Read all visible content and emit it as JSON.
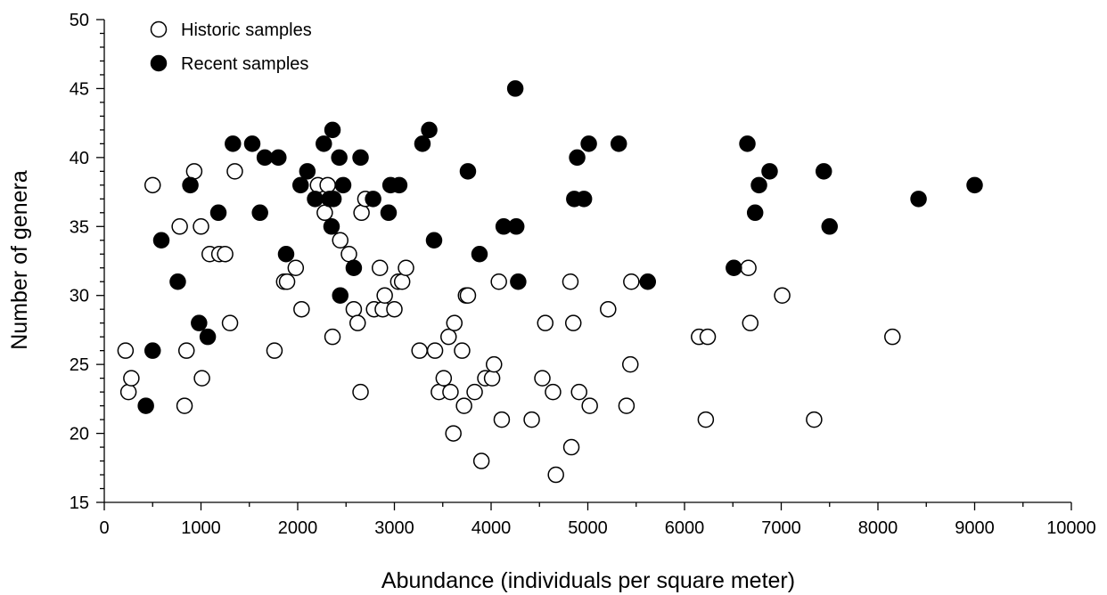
{
  "chart_data": {
    "type": "scatter",
    "xlabel": "Abundance (individuals per square meter)",
    "ylabel": "Number of genera",
    "xlim": [
      0,
      10000
    ],
    "ylim": [
      15,
      50
    ],
    "x_ticks": [
      0,
      1000,
      2000,
      3000,
      4000,
      5000,
      6000,
      7000,
      8000,
      9000,
      10000
    ],
    "y_ticks": [
      15,
      20,
      25,
      30,
      35,
      40,
      45,
      50
    ],
    "x_tick_labels": [
      "0",
      "1000",
      "2000",
      "3000",
      "4000",
      "5000",
      "6000",
      "7000",
      "8000",
      "9000",
      "10000"
    ],
    "y_tick_labels": [
      "15",
      "20",
      "25",
      "30",
      "35",
      "40",
      "45",
      "50"
    ],
    "grid": false,
    "legend_position": "top-left",
    "series": [
      {
        "name": "Historic samples",
        "marker": "open-circle",
        "color": "#000000",
        "fill": "#ffffff",
        "points": [
          [
            220,
            26
          ],
          [
            250,
            23
          ],
          [
            280,
            24
          ],
          [
            500,
            38
          ],
          [
            780,
            35
          ],
          [
            830,
            22
          ],
          [
            850,
            26
          ],
          [
            930,
            39
          ],
          [
            1000,
            35
          ],
          [
            1010,
            24
          ],
          [
            1090,
            33
          ],
          [
            1190,
            33
          ],
          [
            1250,
            33
          ],
          [
            1300,
            28
          ],
          [
            1350,
            39
          ],
          [
            1760,
            26
          ],
          [
            1860,
            31
          ],
          [
            1890,
            31
          ],
          [
            1980,
            32
          ],
          [
            2040,
            29
          ],
          [
            2210,
            38
          ],
          [
            2280,
            36
          ],
          [
            2310,
            38
          ],
          [
            2360,
            27
          ],
          [
            2440,
            34
          ],
          [
            2530,
            33
          ],
          [
            2580,
            29
          ],
          [
            2620,
            28
          ],
          [
            2650,
            23
          ],
          [
            2660,
            36
          ],
          [
            2700,
            37
          ],
          [
            2790,
            29
          ],
          [
            2850,
            32
          ],
          [
            2880,
            29
          ],
          [
            2900,
            30
          ],
          [
            3000,
            29
          ],
          [
            3040,
            31
          ],
          [
            3080,
            31
          ],
          [
            3120,
            32
          ],
          [
            3260,
            26
          ],
          [
            3420,
            26
          ],
          [
            3460,
            23
          ],
          [
            3510,
            24
          ],
          [
            3560,
            27
          ],
          [
            3580,
            23
          ],
          [
            3610,
            20
          ],
          [
            3620,
            28
          ],
          [
            3700,
            26
          ],
          [
            3720,
            22
          ],
          [
            3740,
            30
          ],
          [
            3760,
            30
          ],
          [
            3830,
            23
          ],
          [
            3900,
            18
          ],
          [
            3940,
            24
          ],
          [
            4010,
            24
          ],
          [
            4030,
            25
          ],
          [
            4080,
            31
          ],
          [
            4110,
            21
          ],
          [
            4420,
            21
          ],
          [
            4530,
            24
          ],
          [
            4560,
            28
          ],
          [
            4640,
            23
          ],
          [
            4670,
            17
          ],
          [
            4820,
            31
          ],
          [
            4830,
            19
          ],
          [
            4850,
            28
          ],
          [
            4910,
            23
          ],
          [
            5020,
            22
          ],
          [
            5210,
            29
          ],
          [
            5400,
            22
          ],
          [
            5440,
            25
          ],
          [
            5450,
            31
          ],
          [
            6150,
            27
          ],
          [
            6220,
            21
          ],
          [
            6240,
            27
          ],
          [
            6660,
            32
          ],
          [
            6680,
            28
          ],
          [
            7010,
            30
          ],
          [
            7340,
            21
          ],
          [
            8150,
            27
          ]
        ]
      },
      {
        "name": "Recent samples",
        "marker": "filled-circle",
        "color": "#000000",
        "fill": "#000000",
        "points": [
          [
            430,
            22
          ],
          [
            500,
            26
          ],
          [
            590,
            34
          ],
          [
            760,
            31
          ],
          [
            890,
            38
          ],
          [
            980,
            28
          ],
          [
            1070,
            27
          ],
          [
            1180,
            36
          ],
          [
            1330,
            41
          ],
          [
            1530,
            41
          ],
          [
            1610,
            36
          ],
          [
            1660,
            40
          ],
          [
            1800,
            40
          ],
          [
            1880,
            33
          ],
          [
            2030,
            38
          ],
          [
            2100,
            39
          ],
          [
            2180,
            37
          ],
          [
            2270,
            41
          ],
          [
            2330,
            37
          ],
          [
            2350,
            35
          ],
          [
            2360,
            42
          ],
          [
            2370,
            37
          ],
          [
            2430,
            40
          ],
          [
            2440,
            30
          ],
          [
            2470,
            38
          ],
          [
            2580,
            32
          ],
          [
            2650,
            40
          ],
          [
            2780,
            37
          ],
          [
            2940,
            36
          ],
          [
            2960,
            38
          ],
          [
            3050,
            38
          ],
          [
            3290,
            41
          ],
          [
            3360,
            42
          ],
          [
            3410,
            34
          ],
          [
            3760,
            39
          ],
          [
            3880,
            33
          ],
          [
            4130,
            35
          ],
          [
            4250,
            45
          ],
          [
            4260,
            35
          ],
          [
            4280,
            31
          ],
          [
            4860,
            37
          ],
          [
            4890,
            40
          ],
          [
            4960,
            37
          ],
          [
            5010,
            41
          ],
          [
            5320,
            41
          ],
          [
            5620,
            31
          ],
          [
            6510,
            32
          ],
          [
            6650,
            41
          ],
          [
            6730,
            36
          ],
          [
            6770,
            38
          ],
          [
            6880,
            39
          ],
          [
            7440,
            39
          ],
          [
            7500,
            35
          ],
          [
            8420,
            37
          ],
          [
            9000,
            38
          ]
        ]
      }
    ]
  }
}
